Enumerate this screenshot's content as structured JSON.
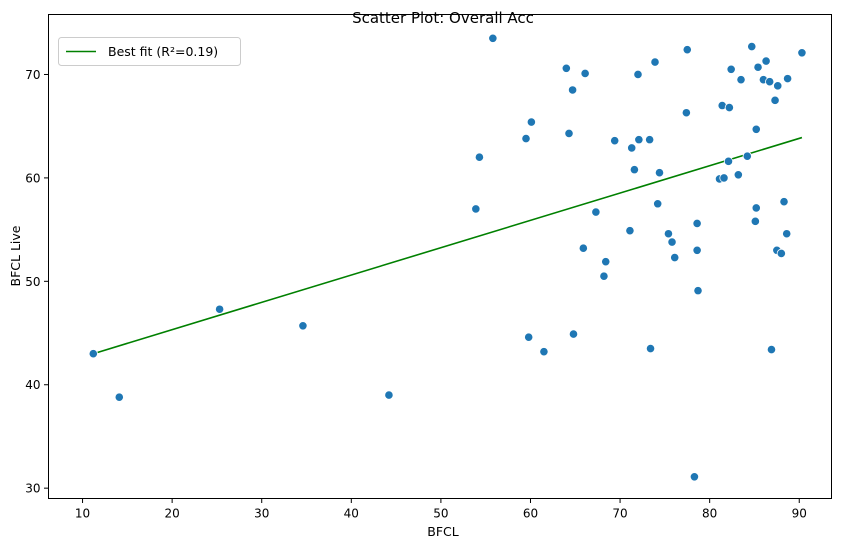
{
  "chart_data": {
    "type": "scatter",
    "title": "Scatter Plot: Overall Acc",
    "xlabel": "BFCL",
    "ylabel": "BFCL Live",
    "xlim": [
      6.2,
      93.6
    ],
    "ylim": [
      29.0,
      75.8
    ],
    "xticks": [
      10,
      20,
      30,
      40,
      50,
      60,
      70,
      80,
      90
    ],
    "yticks": [
      30,
      40,
      50,
      60,
      70
    ],
    "grid": false,
    "legend": {
      "position": "top-left",
      "entries": [
        "Best fit (R²=0.19)"
      ]
    },
    "series": [
      {
        "kind": "points",
        "color": "#1f77b4",
        "points": [
          [
            11.2,
            43.0
          ],
          [
            14.1,
            38.8
          ],
          [
            25.3,
            47.3
          ],
          [
            34.6,
            45.7
          ],
          [
            44.2,
            39.0
          ],
          [
            53.9,
            57.0
          ],
          [
            54.3,
            62.0
          ],
          [
            55.8,
            73.5
          ],
          [
            59.5,
            63.8
          ],
          [
            59.8,
            44.6
          ],
          [
            60.1,
            65.4
          ],
          [
            61.5,
            43.2
          ],
          [
            64.0,
            70.6
          ],
          [
            64.3,
            64.3
          ],
          [
            64.7,
            68.5
          ],
          [
            64.8,
            44.9
          ],
          [
            65.9,
            53.2
          ],
          [
            66.1,
            70.1
          ],
          [
            67.3,
            56.7
          ],
          [
            68.2,
            50.5
          ],
          [
            68.4,
            51.9
          ],
          [
            69.4,
            63.6
          ],
          [
            71.1,
            54.9
          ],
          [
            71.3,
            62.9
          ],
          [
            71.6,
            60.8
          ],
          [
            72.0,
            70.0
          ],
          [
            72.1,
            63.7
          ],
          [
            73.3,
            63.7
          ],
          [
            73.4,
            43.5
          ],
          [
            73.9,
            71.2
          ],
          [
            74.2,
            57.5
          ],
          [
            74.4,
            60.5
          ],
          [
            75.4,
            54.6
          ],
          [
            75.8,
            53.8
          ],
          [
            76.1,
            52.3
          ],
          [
            77.4,
            66.3
          ],
          [
            77.5,
            72.4
          ],
          [
            78.3,
            31.1
          ],
          [
            78.6,
            55.6
          ],
          [
            78.6,
            53.0
          ],
          [
            78.7,
            49.1
          ],
          [
            81.1,
            59.9
          ],
          [
            81.4,
            67.0
          ],
          [
            81.6,
            60.0
          ],
          [
            82.1,
            61.6
          ],
          [
            82.2,
            66.8
          ],
          [
            82.4,
            70.5
          ],
          [
            83.2,
            60.3
          ],
          [
            83.5,
            69.5
          ],
          [
            84.2,
            62.1
          ],
          [
            84.7,
            72.7
          ],
          [
            85.1,
            55.8
          ],
          [
            85.2,
            57.1
          ],
          [
            85.2,
            64.7
          ],
          [
            85.4,
            70.7
          ],
          [
            86.0,
            69.5
          ],
          [
            86.3,
            71.3
          ],
          [
            86.7,
            69.3
          ],
          [
            86.9,
            43.4
          ],
          [
            87.3,
            67.5
          ],
          [
            87.5,
            53.0
          ],
          [
            87.6,
            68.9
          ],
          [
            88.0,
            52.7
          ],
          [
            88.3,
            57.7
          ],
          [
            88.6,
            54.6
          ],
          [
            88.7,
            69.6
          ],
          [
            90.3,
            72.1
          ]
        ]
      },
      {
        "kind": "line",
        "name": "Best fit (R²=0.19)",
        "color": "#008000",
        "points": [
          [
            11.2,
            43.0
          ],
          [
            90.3,
            63.9
          ]
        ]
      }
    ]
  }
}
